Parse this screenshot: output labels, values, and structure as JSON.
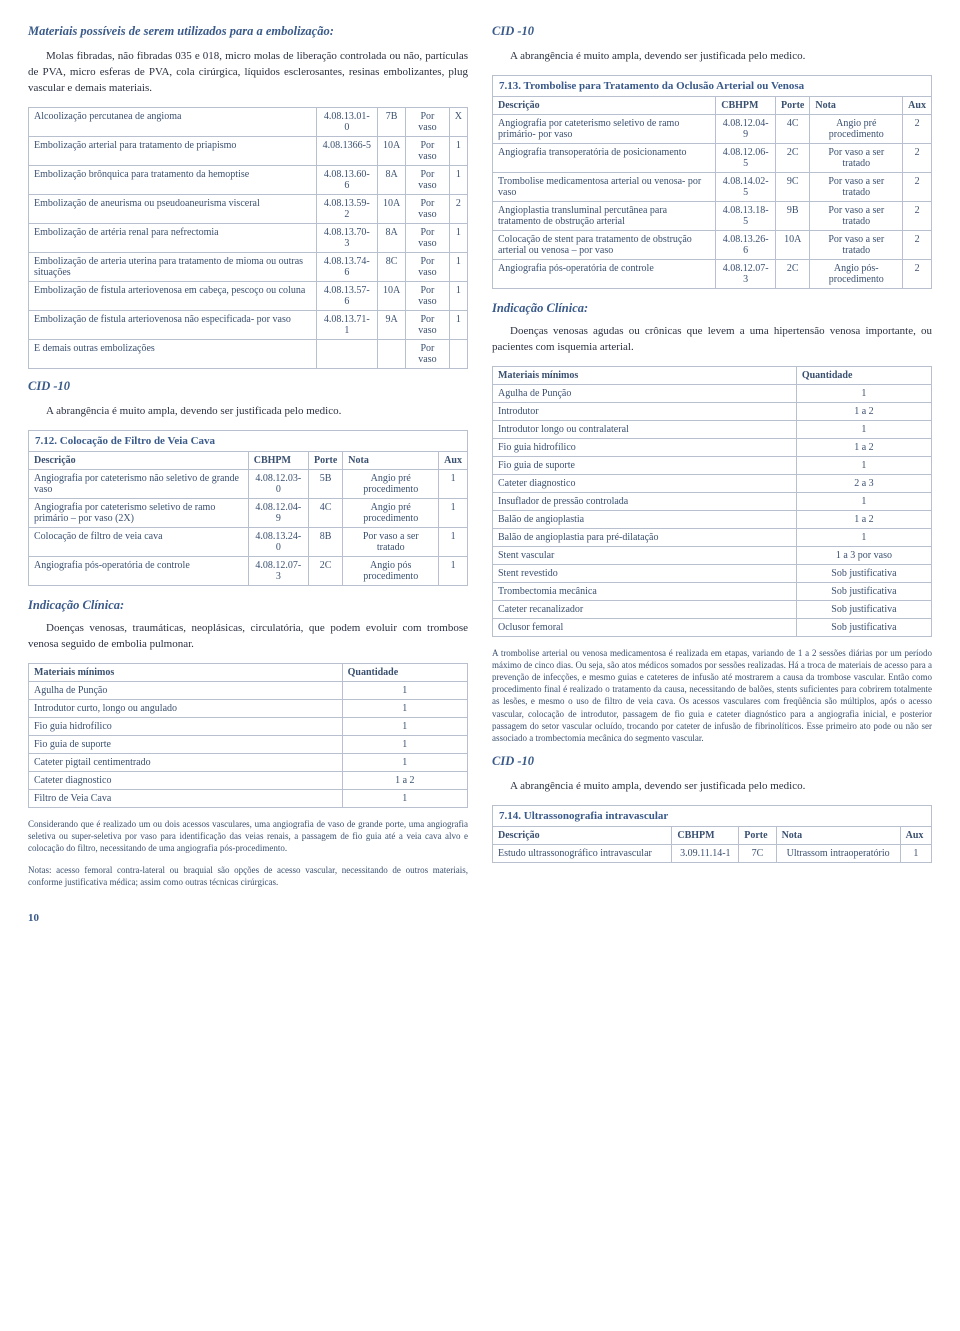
{
  "left": {
    "title": "Materiais possíveis de serem utilizados para a embolização:",
    "intro": "Molas fibradas, não fibradas 035 e 018, micro molas de liberação controlada ou não, partículas de PVA, micro esferas de PVA, cola cirúrgica, líquidos esclerosantes, resinas embolizantes, plug vascular e demais materiais.",
    "emb_table": {
      "rows": [
        [
          "Alcoolização percutanea de angioma",
          "4.08.13.01-0",
          "7B",
          "Por vaso",
          "X"
        ],
        [
          "Embolização arterial para tratamento de priapismo",
          "4.08.1366-5",
          "10A",
          "Por vaso",
          "1"
        ],
        [
          "Embolização brônquica para tratamento da hemoptise",
          "4.08.13.60-6",
          "8A",
          "Por vaso",
          "1"
        ],
        [
          "Embolização de aneurisma ou pseudoaneurisma visceral",
          "4.08.13.59-2",
          "10A",
          "Por vaso",
          "2"
        ],
        [
          "Embolização de artéria renal para nefrectomia",
          "4.08.13.70-3",
          "8A",
          "Por vaso",
          "1"
        ],
        [
          "Embolização de arteria uterina para tratamento de mioma ou outras situações",
          "4.08.13.74-6",
          "8C",
          "Por vaso",
          "1"
        ],
        [
          "Embolização de fistula arteriovenosa em cabeça, pescoço ou coluna",
          "4.08.13.57-6",
          "10A",
          "Por vaso",
          "1"
        ],
        [
          "Embolização de fistula arteriovenosa não especificada- por vaso",
          "4.08.13.71-1",
          "9A",
          "Por vaso",
          "1"
        ],
        [
          "E demais outras embolizações",
          "",
          "",
          "Por vaso",
          ""
        ]
      ]
    },
    "cid10": "CID -10",
    "cid10_text": "A abrangência é muito ampla, devendo ser justificada pelo medico.",
    "t712": {
      "title": "7.12. Colocação de Filtro de Veia Cava",
      "headers": [
        "Descrição",
        "CBHPM",
        "Porte",
        "Nota",
        "Aux"
      ],
      "rows": [
        [
          "Angiografia por cateterismo não seletivo de grande vaso",
          "4.08.12.03-0",
          "5B",
          "Angio pré procedimento",
          "1"
        ],
        [
          "Angiografia por cateterismo seletivo de ramo primário – por vaso (2X)",
          "4.08.12.04-9",
          "4C",
          "Angio pré procedimento",
          "1"
        ],
        [
          "Colocação de filtro de veia cava",
          "4.08.13.24-0",
          "8B",
          "Por vaso a ser tratado",
          "1"
        ],
        [
          "Angiografia pós-operatória de controle",
          "4.08.12.07-3",
          "2C",
          "Angio pós procedimento",
          "1"
        ]
      ]
    },
    "indic": "Indicação Clínica:",
    "indic_text": "Doenças venosas, traumáticas, neoplásicas, circulatória, que podem evoluir com trombose venosa seguido de embolia pulmonar.",
    "mat_min": {
      "headers": [
        "Materiais mínimos",
        "Quantidade"
      ],
      "rows": [
        [
          "Agulha de Punção",
          "1"
        ],
        [
          "Introdutor curto, longo ou angulado",
          "1"
        ],
        [
          "Fio guia hidrofílico",
          "1"
        ],
        [
          "Fio guia de suporte",
          "1"
        ],
        [
          "Cateter pigtail centimentrado",
          "1"
        ],
        [
          "Cateter diagnostico",
          "1 a 2"
        ],
        [
          "Filtro de Veia Cava",
          "1"
        ]
      ]
    },
    "caption1": "Considerando que é realizado um ou dois acessos vasculares, uma angiografia de vaso de grande porte, uma angiografia seletiva ou super-seletiva por vaso para identificação das veias renais, a passagem de fio guia até a veia cava alvo e colocação do filtro, necessitando de uma angiografia pós-procedimento.",
    "caption2": "Notas: acesso femoral contra-lateral ou braquial são opções de acesso vascular, necessitando de outros materiais, conforme justificativa médica; assim como outras técnicas cirúrgicas."
  },
  "right": {
    "cid10": "CID -10",
    "cid10_text": "A abrangência é muito ampla, devendo ser justificada pelo medico.",
    "t713": {
      "title": "7.13. Trombolise para Tratamento da Oclusão Arterial ou Venosa",
      "headers": [
        "Descrição",
        "CBHPM",
        "Porte",
        "Nota",
        "Aux"
      ],
      "rows": [
        [
          "Angiografia por cateterismo seletivo de ramo primário- por vaso",
          "4.08.12.04-9",
          "4C",
          "Angio pré procedimento",
          "2"
        ],
        [
          "Angiografia transoperatória de posicionamento",
          "4.08.12.06-5",
          "2C",
          "Por vaso a ser tratado",
          "2"
        ],
        [
          "Trombolise medicamentosa arterial ou venosa- por vaso",
          "4.08.14.02-5",
          "9C",
          "Por vaso a ser tratado",
          "2"
        ],
        [
          "Angioplastia transluminal percutânea para tratamento de obstrução arterial",
          "4.08.13.18-5",
          "9B",
          "Por vaso a ser tratado",
          "2"
        ],
        [
          "Colocação de stent para tratamento de obstrução arterial ou venosa – por vaso",
          "4.08.13.26-6",
          "10A",
          "Por vaso a ser tratado",
          "2"
        ],
        [
          "Angiografia pós-operatória de controle",
          "4.08.12.07-3",
          "2C",
          "Angio pós-procedimento",
          "2"
        ]
      ]
    },
    "indic": "Indicação Clínica:",
    "indic_text": "Doenças venosas agudas ou crônicas que levem a uma hipertensão venosa importante, ou pacientes com isquemia arterial.",
    "mat_min": {
      "headers": [
        "Materiais mínimos",
        "Quantidade"
      ],
      "rows": [
        [
          "Agulha de Punção",
          "1"
        ],
        [
          "Introdutor",
          "1 a 2"
        ],
        [
          "Introdutor longo ou contralateral",
          "1"
        ],
        [
          "Fio guia hidrofílico",
          "1 a 2"
        ],
        [
          "Fio guia de suporte",
          "1"
        ],
        [
          "Cateter diagnostico",
          "2 a 3"
        ],
        [
          "Insuflador de pressão controlada",
          "1"
        ],
        [
          "Balão de angioplastia",
          "1 a 2"
        ],
        [
          "Balão de angioplastia para pré-dilatação",
          "1"
        ],
        [
          "Stent vascular",
          "1 a 3 por vaso"
        ],
        [
          "Stent revestido",
          "Sob justificativa"
        ],
        [
          "Trombectomia mecânica",
          "Sob justificativa"
        ],
        [
          "Cateter recanalizador",
          "Sob justificativa"
        ],
        [
          "Oclusor femoral",
          "Sob justificativa"
        ]
      ]
    },
    "caption": "A trombolise arterial ou venosa medicamentosa é realizada em etapas, variando de 1 a 2 sessões diárias por um período máximo de cinco dias. Ou seja, são atos médicos somados por sessões realizadas. Há a troca de materiais de acesso para a prevenção de infecções, e mesmo guias e cateteres de infusão até mostrarem a causa da trombose vascular. Então como procedimento final é realizado o tratamento da causa, necessitando de balões, stents suficientes para cobrirem totalmente as lesões, e mesmo o uso de filtro de veia cava. Os acessos vasculares com freqüência são múltiplos, após o acesso vascular, colocação de introdutor, passagem de fio guia e cateter diagnóstico para a angiografia inicial, e posterior passagem do setor vascular ocluído, trocando por cateter de infusão de fibrinolíticos. Esse primeiro ato pode ou não ser associado a trombectomia mecânica do segmento vascular.",
    "cid10b": "CID -10",
    "cid10b_text": "A abrangência é muito ampla, devendo ser justificada pelo medico.",
    "t714": {
      "title": "7.14. Ultrassonografia intravascular",
      "headers": [
        "Descrição",
        "CBHPM",
        "Porte",
        "Nota",
        "Aux"
      ],
      "rows": [
        [
          "Estudo ultrassonográfico intravascular",
          "3.09.11.14-1",
          "7C",
          "Ultrassom intraoperatório",
          "1"
        ]
      ]
    }
  },
  "pagenum": "10"
}
